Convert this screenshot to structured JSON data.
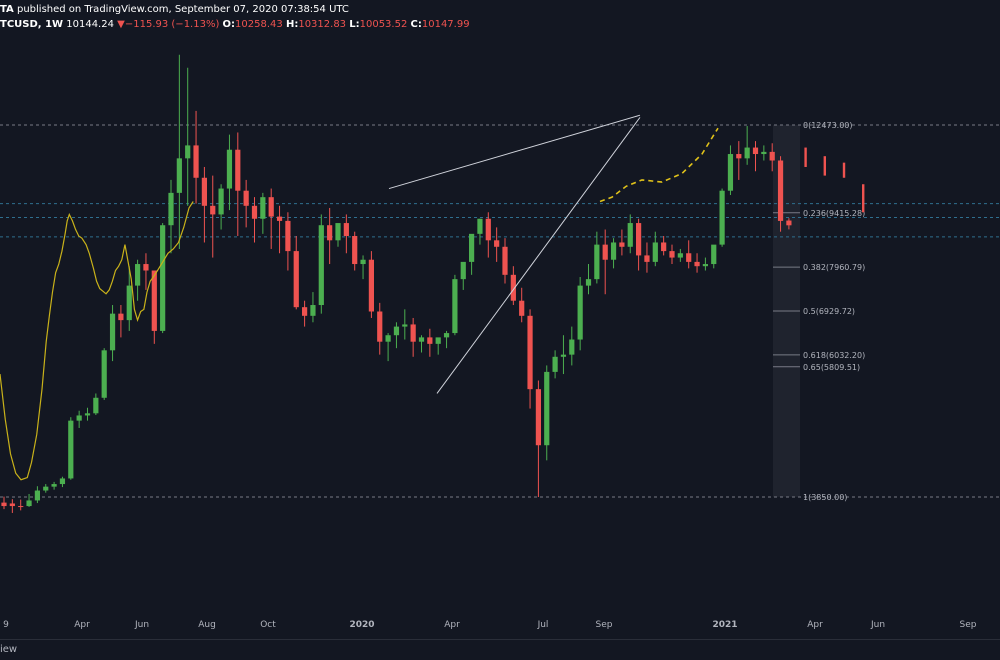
{
  "header": {
    "author_fragment": "TA",
    "published_text": "published on TradingView.com, September 07, 2020 07:38:54 UTC"
  },
  "ohlc": {
    "symbol": "TCUSD, 1W",
    "last": "10144.24",
    "change": "−115.93 (−1.13%)",
    "o_label": "O:",
    "o": "10258.43",
    "h_label": "H:",
    "h": "10312.83",
    "l_label": "L:",
    "l": "10053.52",
    "c_label": "C:",
    "c": "10147.99"
  },
  "footer": {
    "text": "iew"
  },
  "colors": {
    "background": "#131722",
    "up": "#26a69a",
    "up_fill": "#4caf50",
    "down": "#ef5350",
    "ma": "#c9b21a",
    "projection": "#e0c21a",
    "trendline": "#d1d4dc",
    "fib_line": "#787b86",
    "fib_text": "#b2b5be",
    "hline_blue": "#2f6f8f"
  },
  "chart_data": {
    "type": "candlestick",
    "x_tick_labels": [
      "9",
      "Apr",
      "Jun",
      "Aug",
      "Oct",
      "2020",
      "Apr",
      "Jul",
      "Sep",
      "2021",
      "Apr",
      "Jun",
      "Sep"
    ],
    "price_range": [
      2900,
      14700
    ],
    "candles": [
      [
        3720,
        3860,
        3640,
        3570
      ],
      [
        3700,
        3800,
        3640,
        3480
      ],
      [
        3640,
        3790,
        3620,
        3540
      ],
      [
        3640,
        3920,
        3770,
        3620
      ],
      [
        3770,
        4100,
        4000,
        3710
      ],
      [
        4000,
        4150,
        4090,
        3950
      ],
      [
        4090,
        4200,
        4150,
        4020
      ],
      [
        4150,
        4320,
        4280,
        4080
      ],
      [
        4280,
        5700,
        5620,
        4250
      ],
      [
        5620,
        5850,
        5740,
        5450
      ],
      [
        5740,
        5920,
        5790,
        5620
      ],
      [
        5790,
        6250,
        6150,
        5750
      ],
      [
        6150,
        7300,
        7250,
        6100
      ],
      [
        7250,
        8300,
        8100,
        7000
      ],
      [
        8100,
        8300,
        7950,
        7550
      ],
      [
        7950,
        9200,
        8750,
        7700
      ],
      [
        8750,
        9350,
        9250,
        8400
      ],
      [
        9250,
        9500,
        9100,
        8650
      ],
      [
        9100,
        8500,
        7700,
        7400
      ],
      [
        7700,
        10200,
        10150,
        7650
      ],
      [
        10150,
        11200,
        10900,
        9500
      ],
      [
        10900,
        14100,
        11700,
        9600
      ],
      [
        11700,
        13800,
        12000,
        10600
      ],
      [
        12000,
        12800,
        11250,
        10650
      ],
      [
        11250,
        11500,
        10600,
        9750
      ],
      [
        10600,
        11300,
        10400,
        9400
      ],
      [
        10400,
        11100,
        11000,
        10050
      ],
      [
        11000,
        12250,
        11900,
        10500
      ],
      [
        11900,
        12300,
        10950,
        9900
      ],
      [
        10950,
        11200,
        10600,
        10100
      ],
      [
        10600,
        10800,
        10300,
        9750
      ],
      [
        10300,
        10900,
        10800,
        9950
      ],
      [
        10800,
        11000,
        10350,
        9600
      ],
      [
        10350,
        10600,
        10250,
        9500
      ],
      [
        10250,
        10450,
        9550,
        9100
      ],
      [
        9550,
        9900,
        8250,
        8200
      ],
      [
        8250,
        8400,
        8050,
        7800
      ],
      [
        8050,
        8600,
        8300,
        7900
      ],
      [
        8300,
        10400,
        10150,
        8100
      ],
      [
        10150,
        10550,
        9800,
        9250
      ],
      [
        9800,
        10100,
        10200,
        9650
      ],
      [
        10200,
        10400,
        9900,
        9500
      ],
      [
        9900,
        10000,
        9250,
        9100
      ],
      [
        9250,
        9450,
        9350,
        8900
      ],
      [
        9350,
        9550,
        8150,
        8000
      ],
      [
        8150,
        8350,
        7450,
        7150
      ],
      [
        7450,
        7650,
        7600,
        7000
      ],
      [
        7600,
        7900,
        7800,
        7300
      ],
      [
        7800,
        8200,
        7850,
        7500
      ],
      [
        7850,
        8000,
        7450,
        7100
      ],
      [
        7450,
        7600,
        7550,
        7200
      ],
      [
        7550,
        7750,
        7400,
        7100
      ],
      [
        7400,
        7500,
        7550,
        7150
      ],
      [
        7550,
        7700,
        7650,
        7300
      ],
      [
        7650,
        9000,
        8900,
        7600
      ],
      [
        8900,
        9200,
        9300,
        8650
      ],
      [
        9300,
        9500,
        9950,
        9000
      ],
      [
        9950,
        10300,
        10300,
        9700
      ],
      [
        10300,
        10450,
        9800,
        9400
      ],
      [
        9800,
        10100,
        9650,
        9300
      ],
      [
        9650,
        9850,
        9000,
        8800
      ],
      [
        9000,
        9200,
        8400,
        8300
      ],
      [
        8400,
        8700,
        8050,
        7900
      ],
      [
        8050,
        8200,
        6350,
        5900
      ],
      [
        6350,
        6550,
        5050,
        3850
      ],
      [
        5050,
        6900,
        6750,
        4700
      ],
      [
        6750,
        7250,
        7100,
        6600
      ],
      [
        7100,
        7600,
        7150,
        6700
      ],
      [
        7150,
        7800,
        7500,
        6900
      ],
      [
        7500,
        8950,
        8750,
        7250
      ],
      [
        8750,
        9250,
        8900,
        8550
      ],
      [
        8900,
        10000,
        9700,
        8800
      ],
      [
        9700,
        10050,
        9350,
        8550
      ],
      [
        9350,
        9850,
        9750,
        9150
      ],
      [
        9750,
        10050,
        9650,
        9450
      ],
      [
        9650,
        10400,
        10200,
        9500
      ],
      [
        10200,
        10300,
        9450,
        9100
      ],
      [
        9450,
        9750,
        9300,
        9050
      ],
      [
        9300,
        10000,
        9750,
        9200
      ],
      [
        9750,
        9900,
        9550,
        9450
      ],
      [
        9550,
        9700,
        9400,
        9250
      ],
      [
        9400,
        9600,
        9500,
        9300
      ],
      [
        9500,
        9800,
        9300,
        9150
      ],
      [
        9300,
        9500,
        9200,
        9050
      ],
      [
        9200,
        9400,
        9250,
        9100
      ],
      [
        9250,
        9650,
        9700,
        9150
      ],
      [
        9700,
        11000,
        10950,
        9650
      ],
      [
        10950,
        12000,
        11800,
        10850
      ],
      [
        11800,
        12100,
        11700,
        11200
      ],
      [
        11700,
        12450,
        11950,
        11550
      ],
      [
        11950,
        12100,
        11800,
        11400
      ],
      [
        11800,
        12000,
        11850,
        11650
      ],
      [
        11850,
        12050,
        11650,
        11400
      ],
      [
        11650,
        11750,
        10250,
        10000
      ],
      [
        10258.43,
        10312.83,
        10147.99,
        10053.52
      ]
    ],
    "projected_candles": [
      [
        11500,
        11950
      ],
      [
        11300,
        11750
      ],
      [
        11250,
        11600
      ],
      [
        10450,
        11100
      ]
    ],
    "moving_average": [
      [
        0,
        6700
      ],
      [
        5,
        5650
      ],
      [
        10,
        4850
      ],
      [
        15,
        4400
      ],
      [
        20,
        4250
      ],
      [
        26,
        4300
      ],
      [
        30,
        4650
      ],
      [
        35,
        5300
      ],
      [
        40,
        6350
      ],
      [
        44,
        7450
      ],
      [
        47,
        8050
      ],
      [
        50,
        8600
      ],
      [
        53,
        9050
      ],
      [
        56,
        9250
      ],
      [
        59,
        9550
      ],
      [
        62,
        9950
      ],
      [
        64,
        10250
      ],
      [
        66,
        10400
      ],
      [
        69,
        10250
      ],
      [
        72,
        10050
      ],
      [
        75,
        9900
      ],
      [
        78,
        9850
      ],
      [
        82,
        9700
      ],
      [
        85,
        9500
      ],
      [
        89,
        9150
      ],
      [
        92,
        8850
      ],
      [
        95,
        8680
      ],
      [
        98,
        8620
      ],
      [
        101,
        8560
      ],
      [
        104,
        8650
      ],
      [
        107,
        8850
      ],
      [
        110,
        9100
      ],
      [
        113,
        9200
      ],
      [
        116,
        9350
      ],
      [
        119,
        9700
      ],
      [
        122,
        9300
      ],
      [
        125,
        8900
      ],
      [
        128,
        8200
      ],
      [
        131,
        7950
      ],
      [
        134,
        8150
      ],
      [
        137,
        8200
      ],
      [
        140,
        8600
      ],
      [
        143,
        8850
      ],
      [
        146,
        8950
      ],
      [
        150,
        9100
      ],
      [
        155,
        9300
      ],
      [
        160,
        9500
      ],
      [
        165,
        9600
      ],
      [
        170,
        9750
      ],
      [
        175,
        10100
      ],
      [
        180,
        10550
      ],
      [
        184,
        10700
      ]
    ],
    "projection_ma": [
      [
        184,
        10700
      ],
      [
        190,
        10800
      ],
      [
        197,
        11050
      ],
      [
        205,
        11200
      ],
      [
        215,
        11150
      ],
      [
        225,
        11350
      ],
      [
        235,
        11800
      ],
      [
        243,
        12400
      ]
    ],
    "rising_wedge": {
      "upper": [
        [
          129,
          11000
        ],
        [
          209,
          12700
        ]
      ],
      "lower": [
        [
          144,
          6250
        ],
        [
          209,
          12650
        ]
      ]
    },
    "horizontal_lines": [
      {
        "price": 10650,
        "color": "#2f6f8f"
      },
      {
        "price": 10330,
        "color": "#2f6f8f"
      },
      {
        "price": 9880,
        "color": "#2f6f8f"
      },
      {
        "price": 12473,
        "color": "#787b86"
      },
      {
        "price": 3850,
        "color": "#787b86"
      }
    ],
    "fibonacci": {
      "start_price": 12473,
      "end_price": 3850,
      "levels": [
        {
          "label": "0(12473.00)",
          "ratio": 0
        },
        {
          "label": "0.236(9415.28)",
          "ratio": 0.236
        },
        {
          "label": "0.382(7960.79)",
          "ratio": 0.382
        },
        {
          "label": "0.5(6929.72)",
          "ratio": 0.5
        },
        {
          "label": "0.618(6032.20)",
          "ratio": 0.618
        },
        {
          "label": "0.65(5809.51)",
          "ratio": 0.65
        },
        {
          "label": "1(3850.00)",
          "ratio": 1
        }
      ]
    }
  }
}
